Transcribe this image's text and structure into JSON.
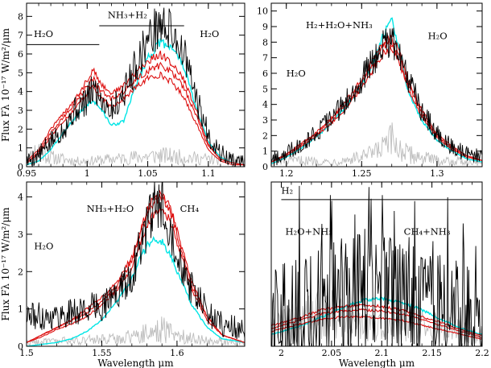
{
  "colors": {
    "observed": "#000000",
    "noise": "#bdbdbd",
    "model_cyan": "#00e5e5",
    "model_red": "#dd1111"
  },
  "chart_data": [
    {
      "type": "line",
      "panel": "top-left",
      "xlim": [
        0.95,
        1.13
      ],
      "ylim": [
        0,
        8.7
      ],
      "xticks": [
        0.95,
        1,
        1.05,
        1.1
      ],
      "xtick_labels": [
        "0.95",
        "1",
        "1.05",
        "1.1"
      ],
      "yticks": [
        0,
        1,
        2,
        3,
        4,
        5,
        6,
        7,
        8
      ],
      "ytick_labels": [
        "0",
        "1",
        "2",
        "3",
        "4",
        "5",
        "6",
        "7",
        "8"
      ],
      "xlabel": "",
      "ylabel": "Flux Fλ 10⁻¹⁷ W/m²/μm",
      "spectrum": {
        "x": [
          0.95,
          0.96,
          0.97,
          0.98,
          0.99,
          1.0,
          1.005,
          1.01,
          1.02,
          1.03,
          1.04,
          1.05,
          1.06,
          1.07,
          1.08,
          1.09,
          1.1,
          1.11,
          1.12,
          1.13
        ],
        "y": [
          0.3,
          0.6,
          1.3,
          2.0,
          3.0,
          3.5,
          4.2,
          3.8,
          3.0,
          3.9,
          5.4,
          6.8,
          7.6,
          7.2,
          6.0,
          3.6,
          1.7,
          0.7,
          0.3,
          0.2
        ],
        "noise": 0.9
      },
      "models": [
        {
          "color": "model_cyan",
          "x": [
            0.95,
            0.96,
            0.97,
            0.98,
            0.99,
            1.0,
            1.005,
            1.01,
            1.02,
            1.03,
            1.04,
            1.05,
            1.06,
            1.07,
            1.08,
            1.09,
            1.1,
            1.11,
            1.12,
            1.13
          ],
          "y": [
            0.1,
            0.3,
            0.9,
            1.8,
            2.6,
            3.3,
            3.5,
            3.2,
            2.2,
            2.4,
            4.3,
            5.8,
            6.6,
            6.4,
            5.3,
            3.1,
            1.3,
            0.5,
            0.2,
            0.1
          ]
        },
        {
          "color": "model_red",
          "x": [
            0.95,
            0.96,
            0.97,
            0.98,
            0.99,
            1.0,
            1.005,
            1.01,
            1.02,
            1.03,
            1.04,
            1.05,
            1.06,
            1.07,
            1.08,
            1.09,
            1.1,
            1.11,
            1.12,
            1.13
          ],
          "y": [
            0.2,
            0.8,
            1.8,
            2.6,
            3.4,
            4.3,
            4.7,
            4.1,
            3.6,
            4.0,
            4.6,
            5.1,
            5.4,
            5.0,
            4.2,
            2.7,
            1.1,
            0.4,
            0.2,
            0.1
          ]
        },
        {
          "color": "model_red",
          "x": [
            0.95,
            0.96,
            0.97,
            0.98,
            0.99,
            1.0,
            1.005,
            1.01,
            1.02,
            1.03,
            1.04,
            1.05,
            1.06,
            1.07,
            1.08,
            1.09,
            1.1,
            1.11,
            1.12,
            1.13
          ],
          "y": [
            0.2,
            0.7,
            1.6,
            2.4,
            3.1,
            3.9,
            4.3,
            3.7,
            3.2,
            3.6,
            4.2,
            4.7,
            4.9,
            4.5,
            3.7,
            2.3,
            0.9,
            0.3,
            0.1,
            0.1
          ]
        },
        {
          "color": "model_red",
          "x": [
            0.95,
            0.96,
            0.97,
            0.98,
            0.99,
            1.0,
            1.005,
            1.01,
            1.02,
            1.03,
            1.04,
            1.05,
            1.06,
            1.07,
            1.08,
            1.09,
            1.1,
            1.11,
            1.12,
            1.13
          ],
          "y": [
            0.3,
            0.9,
            2.0,
            2.8,
            3.6,
            4.6,
            5.2,
            4.5,
            3.9,
            4.3,
            5.0,
            5.6,
            6.0,
            5.5,
            4.6,
            3.0,
            1.2,
            0.4,
            0.2,
            0.1
          ]
        }
      ],
      "noise_spectrum": {
        "x": [
          0.95,
          0.96,
          0.97,
          0.98,
          0.99,
          1.0,
          1.02,
          1.04,
          1.06,
          1.08,
          1.1,
          1.13
        ],
        "y": [
          0.3,
          1.0,
          0.5,
          0.4,
          0.3,
          0.3,
          0.4,
          0.5,
          0.6,
          0.5,
          0.4,
          0.3
        ]
      },
      "bands": [
        {
          "label": "H₂O",
          "x1": 0.95,
          "x2": 1.01,
          "y": 6.5,
          "label_x": 0.956,
          "label_y": 6.9
        },
        {
          "label": "NH₃+H₂",
          "x1": 1.01,
          "x2": 1.08,
          "y": 7.5,
          "label_x": 1.017,
          "label_y": 7.9
        },
        {
          "label": "H₂O",
          "x1": null,
          "x2": null,
          "y": null,
          "label_x": 1.093,
          "label_y": 6.9
        }
      ]
    },
    {
      "type": "line",
      "panel": "top-right",
      "xlim": [
        1.19,
        1.33
      ],
      "ylim": [
        0,
        10.5
      ],
      "xticks": [
        1.2,
        1.25,
        1.3
      ],
      "xtick_labels": [
        "1.2",
        "1.25",
        "1.3"
      ],
      "yticks": [
        0,
        1,
        2,
        3,
        4,
        5,
        6,
        7,
        8,
        9,
        10
      ],
      "ytick_labels": [
        "0",
        "1",
        "2",
        "3",
        "4",
        "5",
        "6",
        "7",
        "8",
        "9",
        "10"
      ],
      "xlabel": "",
      "ylabel": "",
      "spectrum": {
        "x": [
          1.19,
          1.2,
          1.21,
          1.22,
          1.23,
          1.24,
          1.25,
          1.26,
          1.265,
          1.27,
          1.275,
          1.28,
          1.29,
          1.3,
          1.31,
          1.32,
          1.33
        ],
        "y": [
          0.4,
          0.9,
          1.5,
          2.2,
          3.1,
          4.2,
          5.6,
          7.2,
          7.9,
          8.1,
          7.2,
          5.8,
          3.6,
          2.1,
          1.3,
          0.8,
          0.6
        ],
        "noise": 0.9
      },
      "models": [
        {
          "color": "model_cyan",
          "x": [
            1.19,
            1.2,
            1.21,
            1.22,
            1.23,
            1.24,
            1.25,
            1.26,
            1.265,
            1.27,
            1.275,
            1.28,
            1.29,
            1.3,
            1.31,
            1.32,
            1.33
          ],
          "y": [
            0.2,
            0.6,
            1.2,
            1.9,
            2.8,
            3.9,
            5.3,
            7.2,
            8.6,
            9.4,
            7.6,
            5.0,
            3.0,
            1.7,
            1.0,
            0.5,
            0.3
          ]
        },
        {
          "color": "model_red",
          "x": [
            1.19,
            1.2,
            1.21,
            1.22,
            1.23,
            1.24,
            1.25,
            1.26,
            1.265,
            1.27,
            1.275,
            1.28,
            1.29,
            1.3,
            1.31,
            1.32,
            1.33
          ],
          "y": [
            0.3,
            0.8,
            1.4,
            2.1,
            3.0,
            4.1,
            5.4,
            7.0,
            7.8,
            8.0,
            7.1,
            5.5,
            3.4,
            2.0,
            1.2,
            0.7,
            0.4
          ]
        },
        {
          "color": "model_red",
          "x": [
            1.19,
            1.2,
            1.21,
            1.22,
            1.23,
            1.24,
            1.25,
            1.26,
            1.265,
            1.27,
            1.275,
            1.28,
            1.29,
            1.3,
            1.31,
            1.32,
            1.33
          ],
          "y": [
            0.3,
            0.7,
            1.3,
            2.0,
            2.8,
            3.8,
            5.1,
            6.6,
            7.4,
            7.6,
            6.7,
            5.2,
            3.2,
            1.9,
            1.1,
            0.6,
            0.4
          ]
        },
        {
          "color": "model_red",
          "x": [
            1.19,
            1.2,
            1.21,
            1.22,
            1.23,
            1.24,
            1.25,
            1.26,
            1.265,
            1.27,
            1.275,
            1.28,
            1.29,
            1.3,
            1.31,
            1.32,
            1.33
          ],
          "y": [
            0.3,
            0.8,
            1.5,
            2.2,
            3.1,
            4.3,
            5.6,
            7.3,
            8.1,
            8.3,
            7.4,
            5.8,
            3.6,
            2.1,
            1.3,
            0.7,
            0.4
          ]
        }
      ],
      "noise_spectrum": {
        "x": [
          1.19,
          1.21,
          1.23,
          1.25,
          1.26,
          1.27,
          1.28,
          1.3,
          1.33
        ],
        "y": [
          0.3,
          0.4,
          0.3,
          0.6,
          0.9,
          1.6,
          0.8,
          0.4,
          0.3
        ]
      },
      "bands": [
        {
          "label": "H₂+H₂O+NH₃",
          "x1": null,
          "x2": null,
          "y": null,
          "label_x": 1.213,
          "label_y": 8.9
        },
        {
          "label": "H₂O",
          "x1": null,
          "x2": null,
          "y": null,
          "label_x": 1.294,
          "label_y": 8.2
        },
        {
          "label": "H₂O",
          "x1": null,
          "x2": null,
          "y": null,
          "label_x": 1.2,
          "label_y": 5.8
        }
      ]
    },
    {
      "type": "line",
      "panel": "bottom-left",
      "xlim": [
        1.5,
        1.645
      ],
      "ylim": [
        0,
        4.4
      ],
      "xticks": [
        1.5,
        1.55,
        1.6
      ],
      "xtick_labels": [
        "1.5",
        "1.55",
        "1.6"
      ],
      "yticks": [
        0,
        1,
        2,
        3,
        4
      ],
      "ytick_labels": [
        "0",
        "1",
        "2",
        "3",
        "4"
      ],
      "xlabel": "Wavelength μm",
      "ylabel": "Flux Fλ 10⁻¹⁷ W/m²/μm",
      "spectrum": {
        "x": [
          1.5,
          1.51,
          1.52,
          1.53,
          1.54,
          1.55,
          1.56,
          1.57,
          1.575,
          1.58,
          1.585,
          1.59,
          1.595,
          1.6,
          1.61,
          1.62,
          1.63,
          1.645
        ],
        "y": [
          0.8,
          0.8,
          0.8,
          0.9,
          1.0,
          1.1,
          1.4,
          1.9,
          2.6,
          3.2,
          3.7,
          3.8,
          3.3,
          2.6,
          1.5,
          0.9,
          0.6,
          0.4
        ],
        "noise": 0.55
      },
      "models": [
        {
          "color": "model_cyan",
          "x": [
            1.5,
            1.51,
            1.52,
            1.53,
            1.54,
            1.55,
            1.56,
            1.57,
            1.575,
            1.58,
            1.585,
            1.59,
            1.595,
            1.6,
            1.61,
            1.62,
            1.63,
            1.645
          ],
          "y": [
            0.0,
            0.05,
            0.1,
            0.2,
            0.4,
            0.7,
            1.2,
            1.8,
            2.3,
            2.7,
            2.9,
            2.8,
            2.5,
            2.0,
            1.1,
            0.5,
            0.2,
            0.1
          ]
        },
        {
          "color": "model_red",
          "x": [
            1.5,
            1.51,
            1.52,
            1.53,
            1.54,
            1.55,
            1.56,
            1.57,
            1.575,
            1.58,
            1.585,
            1.59,
            1.595,
            1.6,
            1.61,
            1.62,
            1.63,
            1.645
          ],
          "y": [
            0.1,
            0.3,
            0.5,
            0.7,
            0.9,
            1.2,
            1.6,
            2.3,
            2.9,
            3.5,
            3.9,
            4.0,
            3.7,
            3.0,
            1.6,
            0.8,
            0.3,
            0.1
          ]
        },
        {
          "color": "model_red",
          "x": [
            1.5,
            1.51,
            1.52,
            1.53,
            1.54,
            1.55,
            1.56,
            1.57,
            1.575,
            1.58,
            1.585,
            1.59,
            1.595,
            1.6,
            1.61,
            1.62,
            1.63,
            1.645
          ],
          "y": [
            0.1,
            0.25,
            0.45,
            0.6,
            0.8,
            1.1,
            1.5,
            2.1,
            2.7,
            3.2,
            3.6,
            3.7,
            3.4,
            2.8,
            1.5,
            0.7,
            0.3,
            0.1
          ]
        },
        {
          "color": "model_red",
          "x": [
            1.5,
            1.51,
            1.52,
            1.53,
            1.54,
            1.55,
            1.56,
            1.57,
            1.575,
            1.58,
            1.585,
            1.59,
            1.595,
            1.6,
            1.61,
            1.62,
            1.63,
            1.645
          ],
          "y": [
            0.1,
            0.3,
            0.5,
            0.7,
            1.0,
            1.3,
            1.7,
            2.4,
            3.0,
            3.6,
            4.0,
            4.1,
            3.8,
            3.1,
            1.7,
            0.8,
            0.3,
            0.1
          ]
        }
      ],
      "noise_spectrum": {
        "x": [
          1.5,
          1.53,
          1.56,
          1.58,
          1.59,
          1.6,
          1.62,
          1.645
        ],
        "y": [
          0.1,
          0.15,
          0.2,
          0.35,
          0.45,
          0.3,
          0.15,
          0.1
        ]
      },
      "bands": [
        {
          "label": "NH₃+H₂O",
          "x1": null,
          "x2": null,
          "y": null,
          "label_x": 1.54,
          "label_y": 3.6
        },
        {
          "label": "CH₄",
          "x1": null,
          "x2": null,
          "y": null,
          "label_x": 1.602,
          "label_y": 3.6
        },
        {
          "label": "H₂O",
          "x1": null,
          "x2": null,
          "y": null,
          "label_x": 1.505,
          "label_y": 2.6
        }
      ]
    },
    {
      "type": "line",
      "panel": "bottom-right",
      "xlim": [
        1.99,
        2.2
      ],
      "ylim": [
        0,
        2.8
      ],
      "xticks": [
        2.0,
        2.05,
        2.1,
        2.15,
        2.2
      ],
      "xtick_labels": [
        "2",
        "2.05",
        "2.1",
        "2.15",
        "2.2"
      ],
      "yticks": [],
      "ytick_labels": [],
      "xlabel": "Wavelength μm",
      "ylabel": "",
      "spectrum": {
        "x": [
          1.99,
          2.0,
          2.02,
          2.04,
          2.06,
          2.08,
          2.1,
          2.12,
          2.14,
          2.16,
          2.18,
          2.2
        ],
        "y": [
          0.4,
          0.5,
          0.6,
          0.7,
          0.8,
          0.9,
          0.9,
          0.8,
          0.7,
          0.6,
          0.5,
          0.4
        ],
        "noise": 0.85
      },
      "models": [
        {
          "color": "model_cyan",
          "x": [
            1.99,
            2.0,
            2.02,
            2.04,
            2.06,
            2.08,
            2.1,
            2.12,
            2.14,
            2.16,
            2.18,
            2.2
          ],
          "y": [
            0.2,
            0.25,
            0.35,
            0.5,
            0.65,
            0.78,
            0.82,
            0.75,
            0.62,
            0.45,
            0.3,
            0.2
          ]
        },
        {
          "color": "model_red",
          "x": [
            1.99,
            2.0,
            2.02,
            2.04,
            2.06,
            2.08,
            2.1,
            2.12,
            2.14,
            2.16,
            2.18,
            2.2
          ],
          "y": [
            0.3,
            0.35,
            0.45,
            0.55,
            0.6,
            0.62,
            0.6,
            0.55,
            0.45,
            0.35,
            0.25,
            0.15
          ]
        },
        {
          "color": "model_red",
          "x": [
            1.99,
            2.0,
            2.02,
            2.04,
            2.06,
            2.08,
            2.1,
            2.12,
            2.14,
            2.16,
            2.18,
            2.2
          ],
          "y": [
            0.25,
            0.3,
            0.38,
            0.46,
            0.5,
            0.5,
            0.48,
            0.44,
            0.36,
            0.28,
            0.2,
            0.12
          ]
        },
        {
          "color": "model_red",
          "x": [
            1.99,
            2.0,
            2.02,
            2.04,
            2.06,
            2.08,
            2.1,
            2.12,
            2.14,
            2.16,
            2.18,
            2.2
          ],
          "y": [
            0.35,
            0.4,
            0.5,
            0.62,
            0.68,
            0.7,
            0.68,
            0.62,
            0.5,
            0.4,
            0.28,
            0.18
          ]
        }
      ],
      "noise_spectrum": {
        "x": [
          1.99,
          2.03,
          2.05,
          2.07,
          2.1,
          2.13,
          2.16,
          2.2
        ],
        "y": [
          0.3,
          0.5,
          0.6,
          0.4,
          0.3,
          0.4,
          0.3,
          0.2
        ]
      },
      "bands": [
        {
          "label": "H₂",
          "x1": 2.0,
          "x2": 2.2,
          "y": 2.5,
          "label_x": 2.0,
          "label_y": 2.6
        },
        {
          "label": "H₂O+NH₃",
          "x1": null,
          "x2": null,
          "y": null,
          "label_x": 2.004,
          "label_y": 1.9
        },
        {
          "label": "CH₄+NH₃",
          "x1": null,
          "x2": null,
          "y": null,
          "label_x": 2.122,
          "label_y": 1.9
        }
      ]
    }
  ]
}
